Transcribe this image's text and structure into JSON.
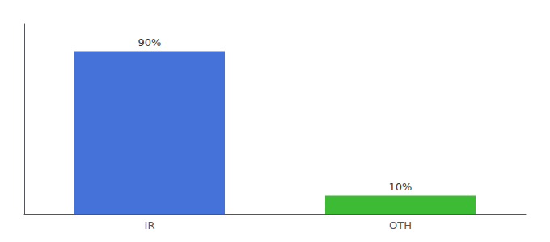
{
  "chart_data": {
    "type": "bar",
    "categories": [
      "IR",
      "OTH"
    ],
    "values": [
      90,
      10
    ],
    "value_labels": [
      "90%",
      "10%"
    ],
    "data_labels": true,
    "colors": [
      "#4472d8",
      "#3dbb35"
    ],
    "ylim": [
      0,
      105
    ],
    "yticks": [],
    "tick_labels": "x",
    "grid": false
  }
}
